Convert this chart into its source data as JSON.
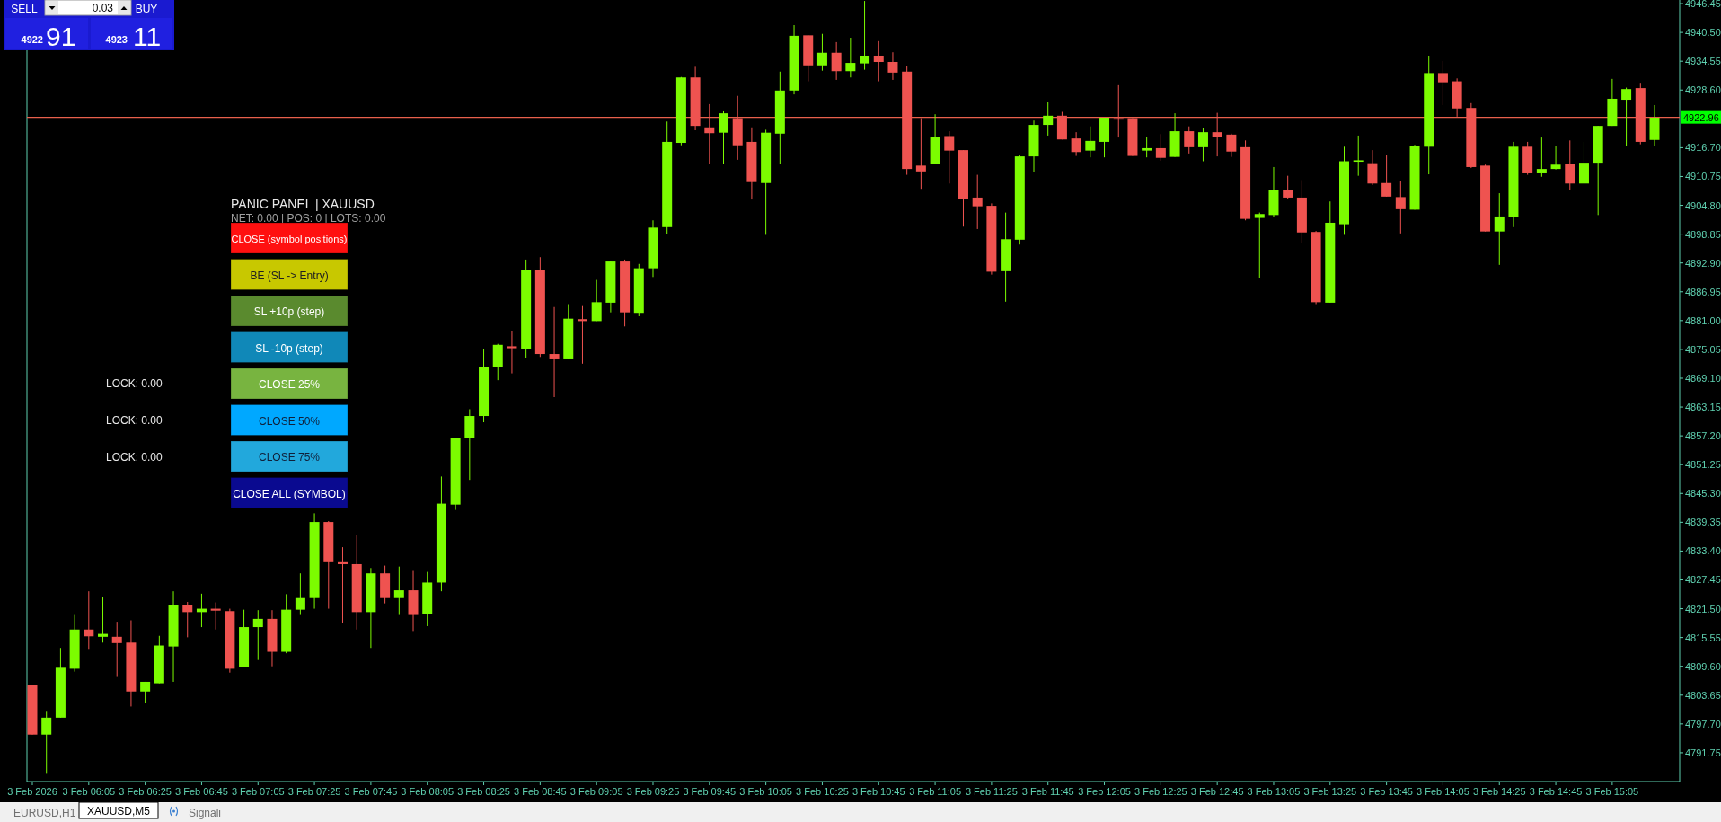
{
  "chart_data": {
    "type": "candlestick",
    "categories": [
      "3 Feb 2026",
      null,
      null,
      null,
      "3 Feb 06:05",
      null,
      null,
      null,
      "3 Feb 06:25",
      null,
      null,
      null,
      "3 Feb 06:45",
      null,
      null,
      null,
      "3 Feb 07:05",
      null,
      null,
      null,
      "3 Feb 07:25",
      null,
      null,
      null,
      "3 Feb 07:45",
      null,
      null,
      null,
      "3 Feb 08:05",
      null,
      null,
      null,
      "3 Feb 08:25",
      null,
      null,
      null,
      "3 Feb 08:45",
      null,
      null,
      null,
      "3 Feb 09:05",
      null,
      null,
      null,
      "3 Feb 09:25",
      null,
      null,
      null,
      "3 Feb 09:45",
      null,
      null,
      null,
      "3 Feb 10:05",
      null,
      null,
      null,
      "3 Feb 10:25",
      null,
      null,
      null,
      "3 Feb 10:45",
      null,
      null,
      null,
      "3 Feb 11:05",
      null,
      null,
      null,
      "3 Feb 11:25",
      null,
      null,
      null,
      "3 Feb 11:45",
      null,
      null,
      null,
      "3 Feb 12:05",
      null,
      null,
      null,
      "3 Feb 12:25",
      null,
      null,
      null,
      "3 Feb 12:45",
      null,
      null,
      null,
      "3 Feb 13:05",
      null,
      null,
      null,
      "3 Feb 13:25",
      null,
      null,
      null,
      "3 Feb 13:45",
      null,
      null,
      null,
      "3 Feb 14:05",
      null,
      null,
      null,
      "3 Feb 14:25",
      null,
      null,
      null,
      "3 Feb 14:45",
      null,
      null,
      null,
      "3 Feb 15:05",
      null,
      null,
      null
    ],
    "ohlc": [
      [
        4805.8,
        4805.8,
        4795.5,
        4795.5
      ],
      [
        4795.5,
        4800.4,
        4787.4,
        4799.0
      ],
      [
        4799.0,
        4813.4,
        4799.0,
        4809.3
      ],
      [
        4809.1,
        4820.2,
        4808.5,
        4817.2
      ],
      [
        4817.2,
        4825.1,
        4813.2,
        4815.8
      ],
      [
        4815.7,
        4823.9,
        4814.5,
        4816.3
      ],
      [
        4815.7,
        4818.8,
        4807.4,
        4814.4
      ],
      [
        4814.5,
        4819.1,
        4801.3,
        4804.4
      ],
      [
        4804.4,
        4806.4,
        4802.0,
        4806.4
      ],
      [
        4806.1,
        4815.9,
        4806.1,
        4813.9
      ],
      [
        4813.7,
        4825.1,
        4806.4,
        4822.3
      ],
      [
        4822.3,
        4822.9,
        4815.6,
        4820.8
      ],
      [
        4820.8,
        4824.6,
        4817.7,
        4821.5
      ],
      [
        4821.5,
        4822.8,
        4817.2,
        4821.1
      ],
      [
        4821.0,
        4821.5,
        4808.3,
        4809.1
      ],
      [
        4809.5,
        4821.3,
        4809.5,
        4817.7
      ],
      [
        4817.7,
        4821.2,
        4810.9,
        4819.4
      ],
      [
        4819.4,
        4821.2,
        4809.6,
        4812.6
      ],
      [
        4812.6,
        4824.5,
        4812.3,
        4821.3
      ],
      [
        4821.3,
        4828.8,
        4820.2,
        4823.7
      ],
      [
        4823.7,
        4841.2,
        4821.5,
        4839.4
      ],
      [
        4839.4,
        4839.6,
        4821.5,
        4831.1
      ],
      [
        4831.1,
        4834.2,
        4818.5,
        4830.7
      ],
      [
        4830.7,
        4836.7,
        4817.2,
        4820.8
      ],
      [
        4820.8,
        4829.9,
        4813.4,
        4828.8
      ],
      [
        4828.8,
        4830.4,
        4822.6,
        4823.7
      ],
      [
        4823.7,
        4830.2,
        4820.2,
        4825.3
      ],
      [
        4825.3,
        4829.3,
        4816.9,
        4820.2
      ],
      [
        4820.4,
        4829.1,
        4817.9,
        4826.9
      ],
      [
        4826.9,
        4848.8,
        4825.1,
        4843.2
      ],
      [
        4843.0,
        4856.7,
        4841.9,
        4856.7
      ],
      [
        4856.7,
        4862.7,
        4848.1,
        4861.3
      ],
      [
        4861.3,
        4875.2,
        4860.0,
        4871.4
      ],
      [
        4871.4,
        4876.2,
        4868.7,
        4876.0
      ],
      [
        4875.7,
        4878.9,
        4870.1,
        4875.3
      ],
      [
        4875.2,
        4893.6,
        4873.3,
        4891.5
      ],
      [
        4891.5,
        4894.1,
        4873.5,
        4874.1
      ],
      [
        4874.1,
        4883.8,
        4865.2,
        4873.0
      ],
      [
        4873.0,
        4884.4,
        4873.0,
        4881.4
      ],
      [
        4881.3,
        4884.0,
        4872.1,
        4880.9
      ],
      [
        4880.9,
        4889.4,
        4880.9,
        4884.8
      ],
      [
        4884.7,
        4893.4,
        4882.7,
        4893.2
      ],
      [
        4893.2,
        4893.6,
        4879.8,
        4882.7
      ],
      [
        4882.6,
        4892.7,
        4881.9,
        4891.8
      ],
      [
        4891.8,
        4901.7,
        4890.0,
        4900.2
      ],
      [
        4900.3,
        4922.1,
        4898.9,
        4917.9
      ],
      [
        4917.7,
        4931.3,
        4917.2,
        4931.2
      ],
      [
        4931.2,
        4933.4,
        4920.3,
        4921.2
      ],
      [
        4920.9,
        4925.7,
        4913.3,
        4919.7
      ],
      [
        4919.8,
        4924.2,
        4913.3,
        4923.8
      ],
      [
        4922.8,
        4927.4,
        4914.2,
        4917.2
      ],
      [
        4917.9,
        4920.9,
        4906.0,
        4909.6
      ],
      [
        4909.4,
        4920.4,
        4898.7,
        4919.8
      ],
      [
        4919.6,
        4932.4,
        4913.3,
        4928.5
      ],
      [
        4928.5,
        4942.0,
        4927.7,
        4939.8
      ],
      [
        4939.9,
        4939.9,
        4930.4,
        4933.7
      ],
      [
        4933.7,
        4940.2,
        4932.6,
        4936.3
      ],
      [
        4936.3,
        4938.5,
        4930.7,
        4932.5
      ],
      [
        4932.5,
        4939.4,
        4931.2,
        4934.2
      ],
      [
        4934.1,
        4947.0,
        4932.8,
        4935.7
      ],
      [
        4935.7,
        4938.7,
        4930.4,
        4934.4
      ],
      [
        4934.4,
        4936.4,
        4930.7,
        4932.2
      ],
      [
        4932.4,
        4933.5,
        4911.1,
        4912.3
      ],
      [
        4913.0,
        4922.8,
        4908.2,
        4911.8
      ],
      [
        4913.3,
        4923.6,
        4913.3,
        4919.0
      ],
      [
        4919.1,
        4920.1,
        4909.3,
        4916.1
      ],
      [
        4916.2,
        4916.2,
        4900.4,
        4906.2
      ],
      [
        4906.4,
        4911.1,
        4899.9,
        4904.6
      ],
      [
        4904.7,
        4905.2,
        4890.5,
        4891.1
      ],
      [
        4891.2,
        4903.3,
        4884.9,
        4897.8
      ],
      [
        4897.7,
        4915.1,
        4896.7,
        4914.9
      ],
      [
        4914.9,
        4922.3,
        4911.7,
        4921.4
      ],
      [
        4921.4,
        4926.1,
        4919.2,
        4923.3
      ],
      [
        4923.3,
        4924.1,
        4918.4,
        4918.4
      ],
      [
        4918.6,
        4919.9,
        4915.0,
        4915.8
      ],
      [
        4916.1,
        4921.1,
        4914.7,
        4918.1
      ],
      [
        4917.9,
        4922.9,
        4914.7,
        4922.9
      ],
      [
        4922.8,
        4929.6,
        4918.8,
        4922.5
      ],
      [
        4922.8,
        4922.8,
        4915.0,
        4915.0
      ],
      [
        4916.1,
        4919.0,
        4914.7,
        4916.6
      ],
      [
        4916.6,
        4919.5,
        4914.0,
        4914.6
      ],
      [
        4914.8,
        4923.8,
        4914.8,
        4920.1
      ],
      [
        4920.1,
        4921.1,
        4915.5,
        4916.8
      ],
      [
        4916.8,
        4920.7,
        4913.9,
        4919.9
      ],
      [
        4919.9,
        4923.9,
        4914.9,
        4919.0
      ],
      [
        4919.4,
        4919.6,
        4914.8,
        4915.9
      ],
      [
        4916.8,
        4918.2,
        4901.7,
        4902.0
      ],
      [
        4902.2,
        4903.3,
        4889.8,
        4903.0
      ],
      [
        4902.8,
        4912.7,
        4902.3,
        4907.9
      ],
      [
        4908.0,
        4910.9,
        4906.2,
        4906.4
      ],
      [
        4906.4,
        4910.0,
        4897.1,
        4899.2
      ],
      [
        4899.3,
        4899.5,
        4884.4,
        4884.8
      ],
      [
        4884.7,
        4905.6,
        4884.7,
        4901.2
      ],
      [
        4900.9,
        4916.9,
        4898.7,
        4913.9
      ],
      [
        4913.8,
        4919.2,
        4910.9,
        4914.1
      ],
      [
        4913.5,
        4916.2,
        4909.0,
        4909.3
      ],
      [
        4909.4,
        4915.1,
        4906.6,
        4906.6
      ],
      [
        4906.5,
        4909.8,
        4899.0,
        4904.0
      ],
      [
        4903.9,
        4917.3,
        4903.9,
        4917.0
      ],
      [
        4916.9,
        4935.7,
        4911.2,
        4932.1
      ],
      [
        4932.1,
        4934.6,
        4925.5,
        4930.2
      ],
      [
        4930.4,
        4931.0,
        4923.1,
        4924.8
      ],
      [
        4924.9,
        4925.9,
        4912.5,
        4912.7
      ],
      [
        4913.0,
        4913.2,
        4899.4,
        4899.4
      ],
      [
        4899.4,
        4907.3,
        4892.5,
        4902.5
      ],
      [
        4902.4,
        4917.9,
        4900.3,
        4916.9
      ],
      [
        4916.9,
        4917.9,
        4911.1,
        4911.4
      ],
      [
        4911.4,
        4918.8,
        4910.7,
        4912.3
      ],
      [
        4912.3,
        4917.1,
        4912.2,
        4913.2
      ],
      [
        4913.4,
        4918.2,
        4907.9,
        4909.3
      ],
      [
        4909.3,
        4917.9,
        4909.3,
        4913.6
      ],
      [
        4913.6,
        4921.2,
        4902.8,
        4921.2
      ],
      [
        4921.2,
        4930.9,
        4921.2,
        4926.8
      ],
      [
        4926.6,
        4929.1,
        4917.1,
        4928.8
      ],
      [
        4929.0,
        4930.1,
        4917.4,
        4917.9
      ],
      [
        4918.3,
        4925.5,
        4917.1,
        4922.9
      ]
    ],
    "colors": [
      "#ef5350",
      "#7cfc00",
      "#7cfc00",
      "#7cfc00",
      "#ef5350",
      "#7cfc00",
      "#ef5350",
      "#ef5350",
      "#7cfc00",
      "#7cfc00",
      "#7cfc00",
      "#ef5350",
      "#7cfc00",
      "#ef5350",
      "#ef5350",
      "#7cfc00",
      "#7cfc00",
      "#ef5350",
      "#7cfc00",
      "#7cfc00",
      "#7cfc00",
      "#ef5350",
      "#ef5350",
      "#ef5350",
      "#7cfc00",
      "#ef5350",
      "#7cfc00",
      "#ef5350",
      "#7cfc00",
      "#7cfc00",
      "#7cfc00",
      "#7cfc00",
      "#7cfc00",
      "#7cfc00",
      "#ef5350",
      "#7cfc00",
      "#ef5350",
      "#ef5350",
      "#7cfc00",
      "#ef5350",
      "#7cfc00",
      "#7cfc00",
      "#ef5350",
      "#7cfc00",
      "#7cfc00",
      "#7cfc00",
      "#7cfc00",
      "#ef5350",
      "#ef5350",
      "#7cfc00",
      "#ef5350",
      "#ef5350",
      "#7cfc00",
      "#7cfc00",
      "#7cfc00",
      "#ef5350",
      "#7cfc00",
      "#ef5350",
      "#7cfc00",
      "#7cfc00",
      "#ef5350",
      "#ef5350",
      "#ef5350",
      "#ef5350",
      "#7cfc00",
      "#ef5350",
      "#ef5350",
      "#ef5350",
      "#ef5350",
      "#7cfc00",
      "#7cfc00",
      "#7cfc00",
      "#7cfc00",
      "#ef5350",
      "#ef5350",
      "#7cfc00",
      "#7cfc00",
      "#ef5350",
      "#ef5350",
      "#7cfc00",
      "#ef5350",
      "#7cfc00",
      "#ef5350",
      "#7cfc00",
      "#ef5350",
      "#ef5350",
      "#ef5350",
      "#7cfc00",
      "#7cfc00",
      "#ef5350",
      "#ef5350",
      "#ef5350",
      "#7cfc00",
      "#7cfc00",
      "#7cfc00",
      "#ef5350",
      "#ef5350",
      "#ef5350",
      "#7cfc00",
      "#7cfc00",
      "#ef5350",
      "#ef5350",
      "#ef5350",
      "#ef5350",
      "#7cfc00",
      "#7cfc00",
      "#ef5350",
      "#7cfc00",
      "#7cfc00",
      "#ef5350",
      "#7cfc00",
      "#7cfc00",
      "#7cfc00",
      "#7cfc00",
      "#ef5350",
      "#7cfc00"
    ],
    "ylim": [
      4785.8,
      4947.2
    ],
    "yticks": [
      {
        "value": 4791.75,
        "label": "4791.75"
      },
      {
        "value": 4797.7,
        "label": "4797.70"
      },
      {
        "value": 4803.65,
        "label": "4803.65"
      },
      {
        "value": 4809.6,
        "label": "4809.60"
      },
      {
        "value": 4815.55,
        "label": "4815.55"
      },
      {
        "value": 4821.5,
        "label": "4821.50"
      },
      {
        "value": 4827.45,
        "label": "4827.45"
      },
      {
        "value": 4833.4,
        "label": "4833.40"
      },
      {
        "value": 4839.35,
        "label": "4839.35"
      },
      {
        "value": 4845.3,
        "label": "4845.30"
      },
      {
        "value": 4851.25,
        "label": "4851.25"
      },
      {
        "value": 4857.2,
        "label": "4857.20"
      },
      {
        "value": 4863.15,
        "label": "4863.15"
      },
      {
        "value": 4869.1,
        "label": "4869.10"
      },
      {
        "value": 4875.05,
        "label": "4875.05"
      },
      {
        "value": 4881,
        "label": "4881.00"
      },
      {
        "value": 4886.95,
        "label": "4886.95"
      },
      {
        "value": 4892.9,
        "label": "4892.90"
      },
      {
        "value": 4898.85,
        "label": "4898.85"
      },
      {
        "value": 4904.8,
        "label": "4904.80"
      },
      {
        "value": 4910.75,
        "label": "4910.75"
      },
      {
        "value": 4916.7,
        "label": "4916.70"
      },
      {
        "value": 4928.6,
        "label": "4928.60"
      },
      {
        "value": 4934.55,
        "label": "4934.55"
      },
      {
        "value": 4940.5,
        "label": "4940.50"
      },
      {
        "value": 4946.45,
        "label": "4946.45"
      }
    ],
    "ref_lines": [
      {
        "axis": "y",
        "value": 4922.96,
        "label": "4922.96",
        "color": "#e8604c"
      }
    ],
    "annotations": [
      "SELL",
      "BUY",
      "0.03",
      "4922",
      "91",
      "4923",
      "11",
      "PANIC PANEL  |  XAUUSD",
      "NET: 0.00 | POS: 0 | LOTS: 0.00",
      "CLOSE (symbol positions)",
      "BE (SL -> Entry)",
      "SL +10p (step)",
      "SL -10p (step)",
      "CLOSE 25%",
      "CLOSE 50%",
      "CLOSE 75%",
      "CLOSE ALL (SYMBOL)",
      "LOCK: 0.00",
      "LOCK: 0.00",
      "LOCK: 0.00",
      "EURUSD,H1",
      "XAUUSD,M5",
      "Signali"
    ]
  }
}
